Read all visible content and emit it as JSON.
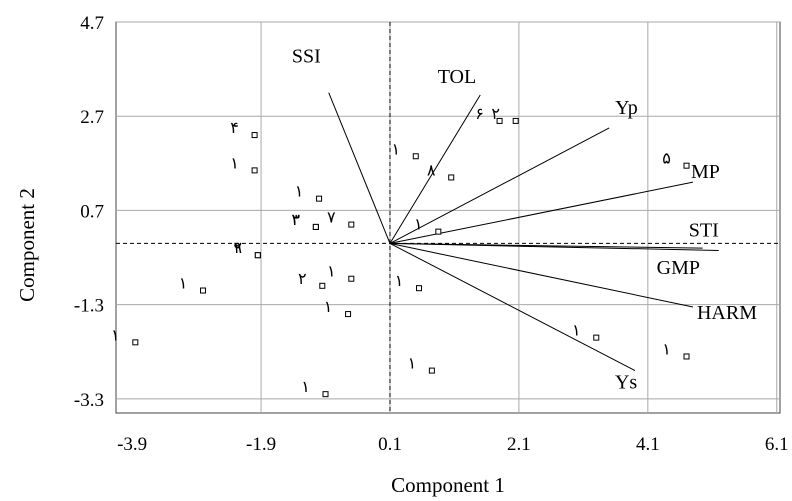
{
  "chart_data": {
    "type": "scatter",
    "title": "",
    "xlabel": "Component 1",
    "ylabel": "Component 2",
    "xlim": [
      -4.15,
      6.15
    ],
    "ylim": [
      -3.6,
      4.7
    ],
    "xticks": [
      -3.9,
      -1.9,
      0.1,
      2.1,
      4.1,
      6.1
    ],
    "yticks": [
      -3.3,
      -1.3,
      0.7,
      2.7,
      4.7
    ],
    "xtick_labels": [
      "-3.9",
      "-1.9",
      "0.1",
      "2.1",
      "4.1",
      "6.1"
    ],
    "ytick_labels": [
      "-3.3",
      "-1.3",
      "0.7",
      "2.7",
      "4.7"
    ],
    "grid": true,
    "origin_lines": {
      "x": 0.1,
      "y": 0.0
    },
    "vectors": [
      {
        "label": "SSI",
        "x": -0.85,
        "y": 3.2
      },
      {
        "label": "TOL",
        "x": 1.5,
        "y": 3.15
      },
      {
        "label": "Yp",
        "x": 3.5,
        "y": 2.45
      },
      {
        "label": "MP",
        "x": 4.8,
        "y": 1.3
      },
      {
        "label": "STI",
        "x": 5.2,
        "y": -0.15
      },
      {
        "label": "GMP",
        "x": 4.95,
        "y": -0.1
      },
      {
        "label": "HARM",
        "x": 4.8,
        "y": -1.35
      },
      {
        "label": "Ys",
        "x": 3.9,
        "y": -2.7
      }
    ],
    "points": [
      {
        "x": -2.0,
        "y": 2.3,
        "label": "۴"
      },
      {
        "x": -2.0,
        "y": 1.55,
        "label": "۱"
      },
      {
        "x": -1.95,
        "y": -0.25,
        "label": "۹"
      },
      {
        "x": -1.95,
        "y": -0.25,
        "label": "۲"
      },
      {
        "x": -3.85,
        "y": -2.1,
        "label": "۱"
      },
      {
        "x": -1.0,
        "y": 0.95,
        "label": "۱"
      },
      {
        "x": -1.05,
        "y": 0.35,
        "label": "۲"
      },
      {
        "x": -0.5,
        "y": 0.4,
        "label": "۷"
      },
      {
        "x": -1.05,
        "y": 0.35,
        "label": "۳"
      },
      {
        "x": -0.95,
        "y": -0.9,
        "label": "۲"
      },
      {
        "x": -0.5,
        "y": -0.75,
        "label": "۱"
      },
      {
        "x": -0.55,
        "y": -1.5,
        "label": "۱"
      },
      {
        "x": -0.9,
        "y": -3.2,
        "label": "۱"
      },
      {
        "x": 0.5,
        "y": 1.85,
        "label": "۱"
      },
      {
        "x": 1.05,
        "y": 1.4,
        "label": "۸"
      },
      {
        "x": 0.85,
        "y": 0.25,
        "label": "۱"
      },
      {
        "x": 0.55,
        "y": -0.95,
        "label": "۱"
      },
      {
        "x": 1.8,
        "y": 2.6,
        "label": "۶"
      },
      {
        "x": 2.05,
        "y": 2.6,
        "label": "۲"
      },
      {
        "x": 3.3,
        "y": -2.0,
        "label": "۱"
      },
      {
        "x": 4.7,
        "y": 1.65,
        "label": "۵"
      },
      {
        "x": 4.7,
        "y": -2.4,
        "label": "۱"
      },
      {
        "x": 0.75,
        "y": -2.7,
        "label": "۱"
      },
      {
        "x": -2.8,
        "y": -1.0,
        "label": "۱"
      }
    ]
  }
}
